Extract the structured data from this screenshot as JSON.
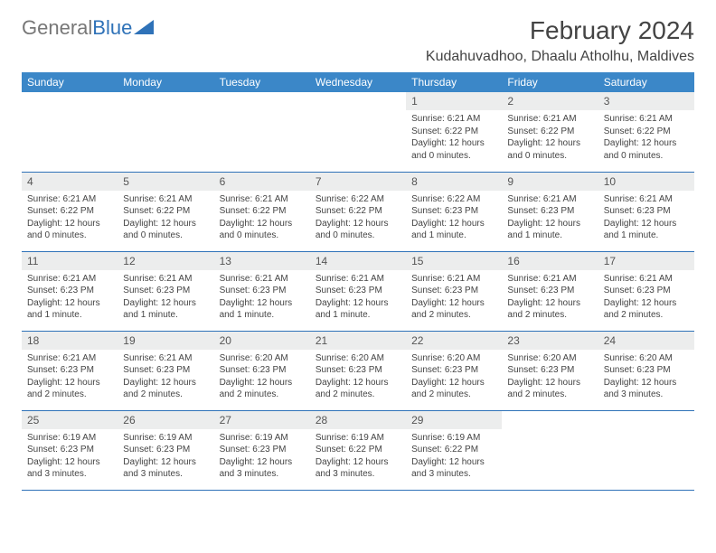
{
  "brand": {
    "part1": "General",
    "part2": "Blue"
  },
  "title": "February 2024",
  "location": "Kudahuvadhoo, Dhaalu Atholhu, Maldives",
  "colors": {
    "header_bg": "#3b87c8",
    "header_text": "#ffffff",
    "daynum_bg": "#eceded",
    "row_border": "#2f72b8",
    "brand_blue": "#2f72b8",
    "brand_gray": "#777777"
  },
  "weekdays": [
    "Sunday",
    "Monday",
    "Tuesday",
    "Wednesday",
    "Thursday",
    "Friday",
    "Saturday"
  ],
  "weeks": [
    [
      null,
      null,
      null,
      null,
      {
        "n": "1",
        "sr": "6:21 AM",
        "ss": "6:22 PM",
        "dl": "12 hours and 0 minutes."
      },
      {
        "n": "2",
        "sr": "6:21 AM",
        "ss": "6:22 PM",
        "dl": "12 hours and 0 minutes."
      },
      {
        "n": "3",
        "sr": "6:21 AM",
        "ss": "6:22 PM",
        "dl": "12 hours and 0 minutes."
      }
    ],
    [
      {
        "n": "4",
        "sr": "6:21 AM",
        "ss": "6:22 PM",
        "dl": "12 hours and 0 minutes."
      },
      {
        "n": "5",
        "sr": "6:21 AM",
        "ss": "6:22 PM",
        "dl": "12 hours and 0 minutes."
      },
      {
        "n": "6",
        "sr": "6:21 AM",
        "ss": "6:22 PM",
        "dl": "12 hours and 0 minutes."
      },
      {
        "n": "7",
        "sr": "6:22 AM",
        "ss": "6:22 PM",
        "dl": "12 hours and 0 minutes."
      },
      {
        "n": "8",
        "sr": "6:22 AM",
        "ss": "6:23 PM",
        "dl": "12 hours and 1 minute."
      },
      {
        "n": "9",
        "sr": "6:21 AM",
        "ss": "6:23 PM",
        "dl": "12 hours and 1 minute."
      },
      {
        "n": "10",
        "sr": "6:21 AM",
        "ss": "6:23 PM",
        "dl": "12 hours and 1 minute."
      }
    ],
    [
      {
        "n": "11",
        "sr": "6:21 AM",
        "ss": "6:23 PM",
        "dl": "12 hours and 1 minute."
      },
      {
        "n": "12",
        "sr": "6:21 AM",
        "ss": "6:23 PM",
        "dl": "12 hours and 1 minute."
      },
      {
        "n": "13",
        "sr": "6:21 AM",
        "ss": "6:23 PM",
        "dl": "12 hours and 1 minute."
      },
      {
        "n": "14",
        "sr": "6:21 AM",
        "ss": "6:23 PM",
        "dl": "12 hours and 1 minute."
      },
      {
        "n": "15",
        "sr": "6:21 AM",
        "ss": "6:23 PM",
        "dl": "12 hours and 2 minutes."
      },
      {
        "n": "16",
        "sr": "6:21 AM",
        "ss": "6:23 PM",
        "dl": "12 hours and 2 minutes."
      },
      {
        "n": "17",
        "sr": "6:21 AM",
        "ss": "6:23 PM",
        "dl": "12 hours and 2 minutes."
      }
    ],
    [
      {
        "n": "18",
        "sr": "6:21 AM",
        "ss": "6:23 PM",
        "dl": "12 hours and 2 minutes."
      },
      {
        "n": "19",
        "sr": "6:21 AM",
        "ss": "6:23 PM",
        "dl": "12 hours and 2 minutes."
      },
      {
        "n": "20",
        "sr": "6:20 AM",
        "ss": "6:23 PM",
        "dl": "12 hours and 2 minutes."
      },
      {
        "n": "21",
        "sr": "6:20 AM",
        "ss": "6:23 PM",
        "dl": "12 hours and 2 minutes."
      },
      {
        "n": "22",
        "sr": "6:20 AM",
        "ss": "6:23 PM",
        "dl": "12 hours and 2 minutes."
      },
      {
        "n": "23",
        "sr": "6:20 AM",
        "ss": "6:23 PM",
        "dl": "12 hours and 2 minutes."
      },
      {
        "n": "24",
        "sr": "6:20 AM",
        "ss": "6:23 PM",
        "dl": "12 hours and 3 minutes."
      }
    ],
    [
      {
        "n": "25",
        "sr": "6:19 AM",
        "ss": "6:23 PM",
        "dl": "12 hours and 3 minutes."
      },
      {
        "n": "26",
        "sr": "6:19 AM",
        "ss": "6:23 PM",
        "dl": "12 hours and 3 minutes."
      },
      {
        "n": "27",
        "sr": "6:19 AM",
        "ss": "6:23 PM",
        "dl": "12 hours and 3 minutes."
      },
      {
        "n": "28",
        "sr": "6:19 AM",
        "ss": "6:22 PM",
        "dl": "12 hours and 3 minutes."
      },
      {
        "n": "29",
        "sr": "6:19 AM",
        "ss": "6:22 PM",
        "dl": "12 hours and 3 minutes."
      },
      null,
      null
    ]
  ],
  "labels": {
    "sunrise": "Sunrise:",
    "sunset": "Sunset:",
    "daylight": "Daylight:"
  }
}
